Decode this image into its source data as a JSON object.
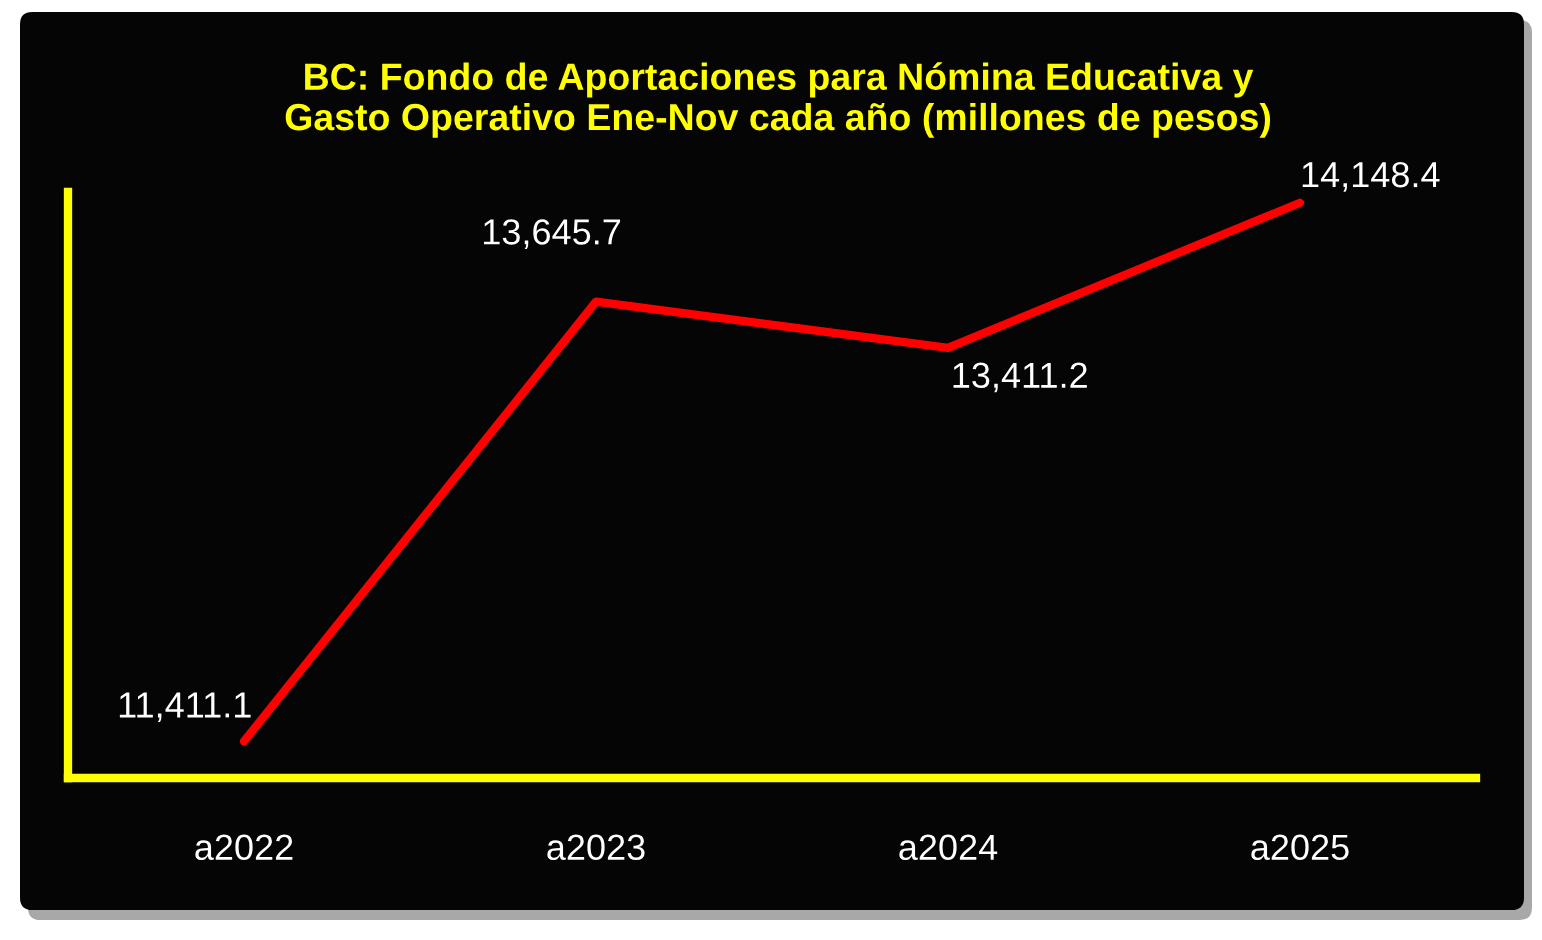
{
  "chart_data": {
    "type": "line",
    "title": "BC: Fondo de Aportaciones para Nómina Educativa y\nGasto Operativo Ene-Nov cada año (millones de pesos)",
    "categories": [
      "a2022",
      "a2023",
      "a2024",
      "a2025"
    ],
    "series": [
      {
        "color": "#ff0000",
        "values": [
          11411.1,
          13645.7,
          13411.2,
          14148.4
        ],
        "value_labels": [
          "11,411.1",
          "13,645.7",
          "13,411.2",
          "14,148.4"
        ]
      }
    ],
    "tick_labels": "x"
  }
}
